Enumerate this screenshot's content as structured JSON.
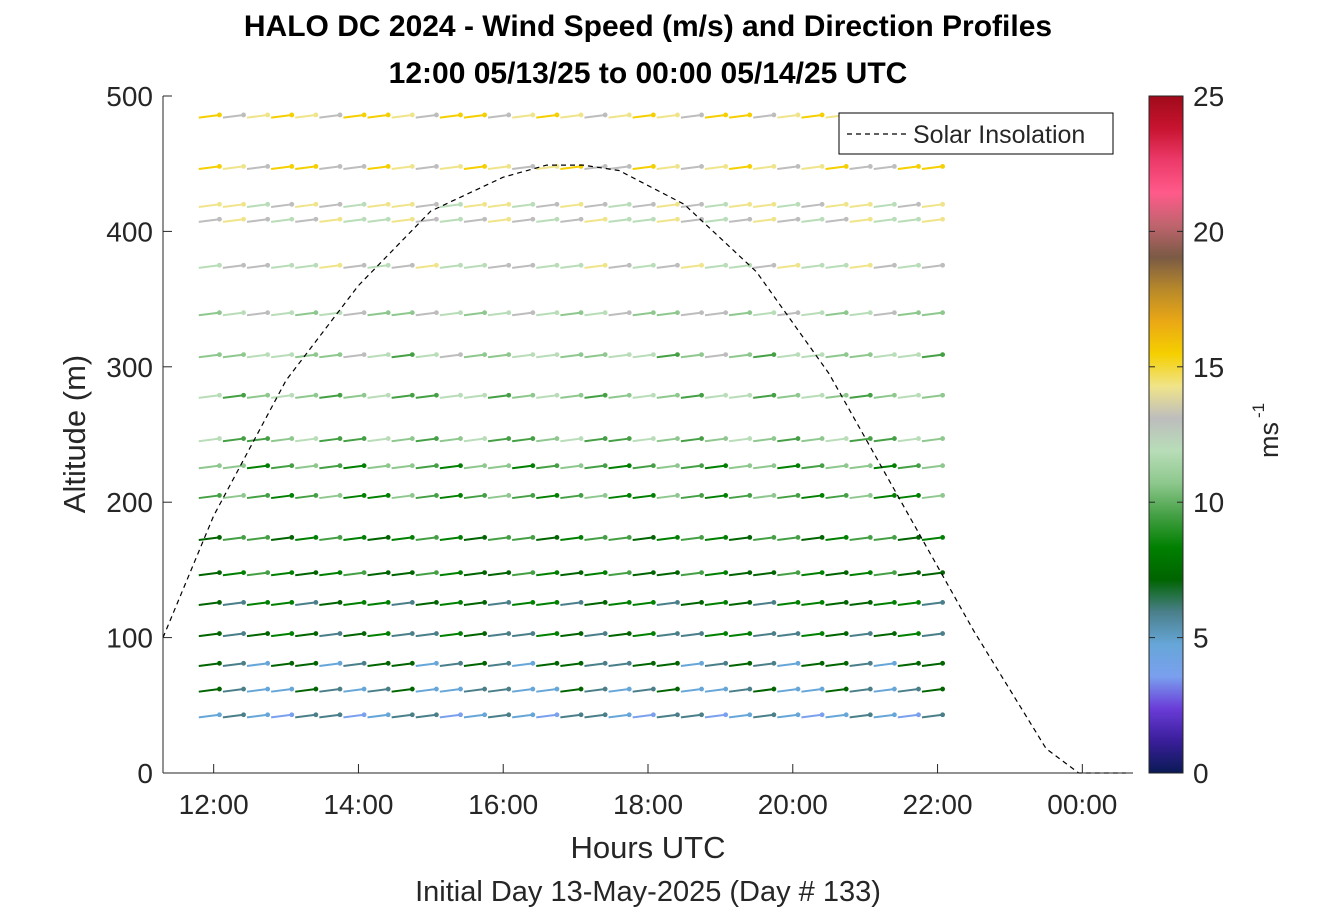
{
  "chart_data": {
    "type": "wind-barb profile",
    "title_line1": "HALO DC 2024 - Wind Speed (m/s) and Direction Profiles",
    "title_line2": "12:00 05/13/25 to 00:00 05/14/25  UTC",
    "xlabel": "Hours UTC",
    "xlabel2": "Initial Day 13-May-2025 (Day # 133)",
    "ylabel": "Altitude (m)",
    "x_ticks": [
      "12:00",
      "14:00",
      "16:00",
      "18:00",
      "20:00",
      "22:00",
      "00:00"
    ],
    "x_tick_hours": [
      12,
      14,
      16,
      18,
      20,
      22,
      24
    ],
    "xlim_hours": [
      11.3,
      24.7
    ],
    "y_ticks": [
      "0",
      "100",
      "200",
      "300",
      "400",
      "500"
    ],
    "y_tick_values": [
      0,
      100,
      200,
      300,
      400,
      500
    ],
    "ylim": [
      0,
      500
    ],
    "legend": {
      "label": "Solar Insolation",
      "placement": "top-right"
    },
    "colorbar": {
      "label": "ms",
      "label_exponent": "-1",
      "ticks": [
        "0",
        "5",
        "10",
        "15",
        "20",
        "25"
      ],
      "tick_values": [
        0,
        5,
        10,
        15,
        20,
        25
      ],
      "range": [
        0,
        25
      ],
      "colors": [
        "#0a1a55",
        "#3a1e9a",
        "#6a3cd8",
        "#7aa0ee",
        "#66a6d8",
        "#4a7f8a",
        "#006400",
        "#008000",
        "#45a045",
        "#8ec88e",
        "#b8ddb8",
        "#bdbdbd",
        "#f0e48a",
        "#f5cf00",
        "#eaa815",
        "#b8892a",
        "#7a5a45",
        "#c0646e",
        "#ff5a8a",
        "#ec3a6a",
        "#c81430",
        "#a00a1a"
      ]
    },
    "solar_insolation": {
      "x_hours": [
        11.3,
        12,
        13,
        14,
        15,
        16,
        16.6,
        17.1,
        17.6,
        18.5,
        19.5,
        20.5,
        21.5,
        22.5,
        23.5,
        23.95,
        24.6
      ],
      "y": [
        100,
        190,
        290,
        360,
        415,
        440,
        449,
        449,
        445,
        420,
        370,
        295,
        200,
        105,
        18,
        0,
        0
      ]
    },
    "barbs": {
      "time_start_hours": 12.08,
      "time_step_hours": 0.333,
      "n_times": 31,
      "altitudes": [
        43,
        62,
        81,
        103,
        126,
        148,
        174,
        205,
        227,
        247,
        279,
        309,
        340,
        375,
        409,
        420,
        448,
        486
      ],
      "speed_profile": [
        5.0,
        5.6,
        6.3,
        6.9,
        7.5,
        8.0,
        8.6,
        9.4,
        9.9,
        10.4,
        10.8,
        11.3,
        11.8,
        12.7,
        13.0,
        13.4,
        14.2,
        14.6
      ],
      "direction_deg": 290
    }
  }
}
